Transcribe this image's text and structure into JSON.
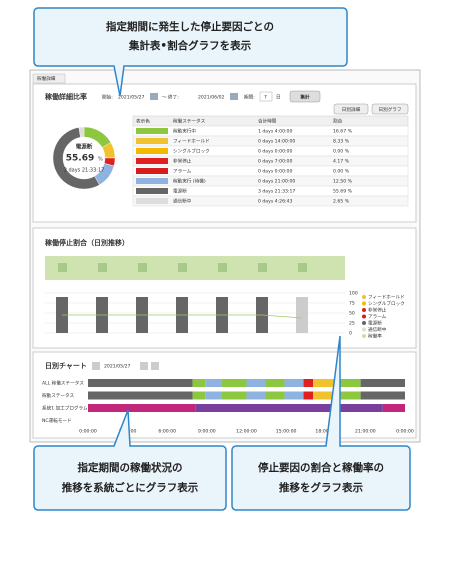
{
  "callouts": {
    "top": [
      "指定期間に発生した停止要因ごとの",
      "集計表•割合グラフを表示"
    ],
    "bottom_left": [
      "指定期間の稼働状況の",
      "推移を系統ごとにグラフ表示"
    ],
    "bottom_right": [
      "停止要因の割合と稼働率の",
      "推移をグラフ表示"
    ]
  },
  "tab": "稼働詳細",
  "detail": {
    "title": "稼働詳細比率",
    "start_label": "開始:",
    "start": "2021/05/27",
    "end_label": "～ 終了:",
    "end": "2021/06/02",
    "period_label": "期間:",
    "period": "7",
    "period_unit": "日",
    "aggregate_button": "集計",
    "daily_detail_button": "日別詳細",
    "daily_graph_button": "日別グラフ",
    "donut": {
      "label": "電源断",
      "value": "55.69",
      "unit": "%",
      "time": "3 days 21:33:17"
    },
    "table": {
      "headers": [
        "表示色",
        "稼働ステータス",
        "合計時間",
        "割合"
      ],
      "rows": [
        {
          "color": "#8dc63f",
          "status": "稼動実行中",
          "total": "1 days 4:00:00",
          "ratio": 16.67,
          "ratio_label": "16.67 %"
        },
        {
          "color": "#f2c12e",
          "status": "フィードホールド",
          "total": "0 days 14:00:00",
          "ratio": 8.33,
          "ratio_label": "8.33 %"
        },
        {
          "color": "#f5b800",
          "status": "シングルブロック",
          "total": "0 days 0:00:00",
          "ratio": 0,
          "ratio_label": "0.00 %"
        },
        {
          "color": "#e02020",
          "status": "非常停止",
          "total": "0 days 7:00:00",
          "ratio": 4.17,
          "ratio_label": "4.17 %"
        },
        {
          "color": "#d81b1b",
          "status": "アラーム",
          "total": "0 days 0:00:00",
          "ratio": 0,
          "ratio_label": "0.00 %"
        },
        {
          "color": "#8fb3e0",
          "status": "稼動実行 (待機)",
          "total": "0 days 21:00:00",
          "ratio": 12.5,
          "ratio_label": "12.50 %"
        },
        {
          "color": "#666666",
          "status": "電源断",
          "total": "3 days 21:33:17",
          "ratio": 55.69,
          "ratio_label": "55.69 %"
        },
        {
          "color": "#dddddd",
          "status": "通信断中",
          "total": "0 days 4:26:43",
          "ratio": 2.65,
          "ratio_label": "2.65 %"
        }
      ]
    }
  },
  "stop_ratio": {
    "title": "稼働停止割合（日別推移）",
    "yticks": [
      100,
      75,
      50,
      25,
      0
    ],
    "legend": [
      "フィードホールド",
      "シングルブロック",
      "非常停止",
      "アラーム",
      "電源断",
      "通信断中",
      "稼働率"
    ]
  },
  "daily_chart": {
    "title": "日別チャート",
    "date": "2021/05/27",
    "rows": [
      "ALL 稼働ステータス",
      "稼動ステータス",
      "系統1 加工プログラム",
      "NC運転モード"
    ],
    "times": [
      "0:00:00",
      "3:00:00",
      "6:00:00",
      "9:00:00",
      "12:00:00",
      "15:00:00",
      "18:00:00",
      "21:00:00",
      "0:00:00"
    ]
  }
}
